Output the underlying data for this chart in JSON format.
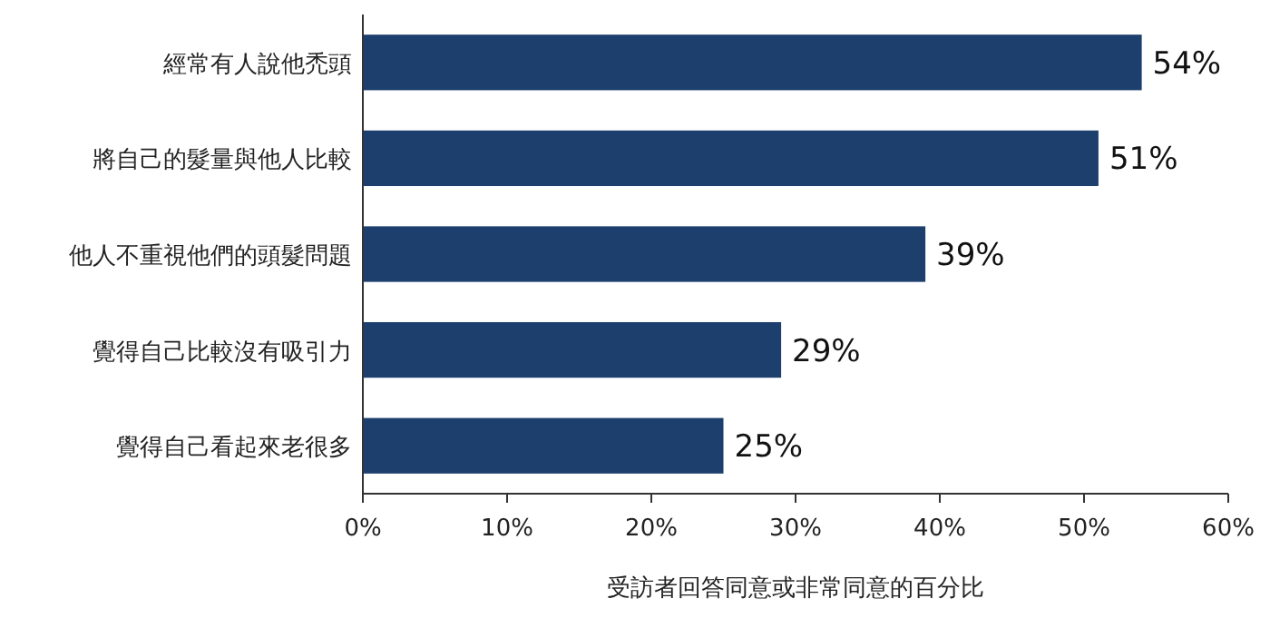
{
  "chart_data": {
    "type": "bar",
    "orientation": "horizontal",
    "categories": [
      "經常有人說他禿頭",
      "將自己的髮量與他人比較",
      "他人不重視他們的頭髮問題",
      "覺得自己比較沒有吸引力",
      "覺得自己看起來老很多"
    ],
    "values": [
      54,
      51,
      39,
      29,
      25
    ],
    "value_labels": [
      "54%",
      "51%",
      "39%",
      "29%",
      "25%"
    ],
    "color": "#1d3f6e",
    "xlim": [
      0,
      60
    ],
    "xticks": [
      {
        "value": 0,
        "label": "0%"
      },
      {
        "value": 10,
        "label": "10%"
      },
      {
        "value": 20,
        "label": "20%"
      },
      {
        "value": 30,
        "label": "30%"
      },
      {
        "value": 40,
        "label": "40%"
      },
      {
        "value": 50,
        "label": "50%"
      },
      {
        "value": 60,
        "label": "60%"
      }
    ],
    "xlabel": "受訪者回答同意或非常同意的百分比",
    "grid": false
  }
}
